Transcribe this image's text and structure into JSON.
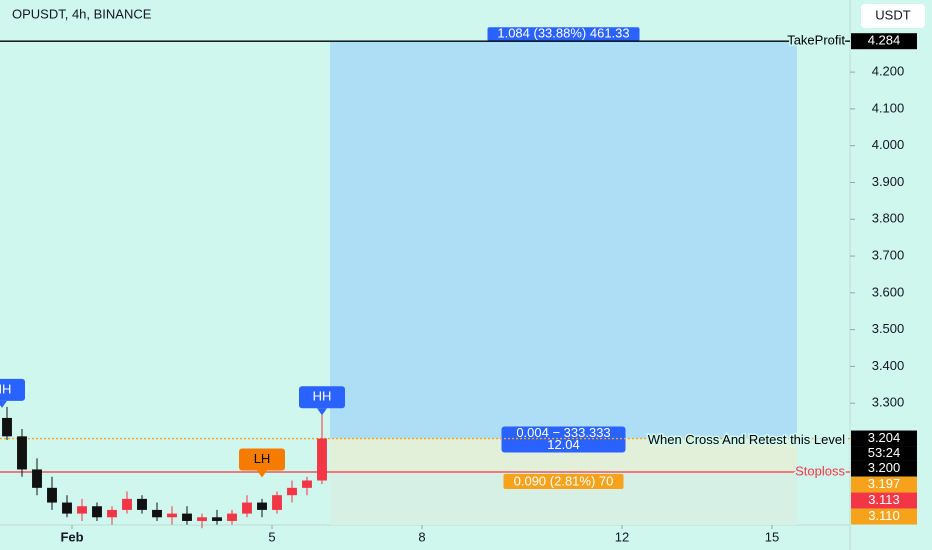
{
  "chart_data": {
    "type": "candlestick",
    "title": "OPUSDT, 4h, BINANCE",
    "currency": "USDT",
    "xlim": [
      -0.44,
      16.56
    ],
    "xticks": [
      {
        "value": 1,
        "label": "Feb"
      },
      5,
      8,
      12,
      15
    ],
    "ylim": [
      2.969,
      4.396
    ],
    "yticks": [
      {
        "value": 3.3,
        "label": "3.300"
      },
      {
        "value": 3.4,
        "label": "3.400"
      },
      {
        "value": 3.5,
        "label": "3.500"
      },
      {
        "value": 3.6,
        "label": "3.600"
      },
      {
        "value": 3.7,
        "label": "3.700"
      },
      {
        "value": 3.8,
        "label": "3.800"
      },
      {
        "value": 3.9,
        "label": "3.900"
      },
      {
        "value": 4.0,
        "label": "4.000"
      },
      {
        "value": 4.1,
        "label": "4.100"
      },
      {
        "value": 4.2,
        "label": "4.200"
      }
    ],
    "up_color": "#f23645",
    "down_color": "#111111",
    "x": [
      -0.3,
      0.0,
      0.3,
      0.6,
      0.9,
      1.2,
      1.5,
      1.8,
      2.1,
      2.4,
      2.7,
      3.0,
      3.3,
      3.6,
      3.9,
      4.2,
      4.5,
      4.8,
      5.1,
      5.4,
      5.7,
      6.0
    ],
    "open": [
      3.26,
      3.21,
      3.12,
      3.07,
      3.03,
      3.0,
      3.02,
      2.99,
      3.01,
      3.04,
      3.01,
      2.99,
      3.0,
      2.98,
      2.99,
      2.98,
      3.0,
      3.03,
      3.01,
      3.05,
      3.07,
      3.09
    ],
    "high": [
      3.29,
      3.23,
      3.15,
      3.1,
      3.05,
      3.04,
      3.03,
      3.02,
      3.06,
      3.05,
      3.03,
      3.02,
      3.02,
      3.0,
      3.01,
      3.01,
      3.05,
      3.04,
      3.06,
      3.09,
      3.1,
      3.27
    ],
    "low": [
      3.2,
      3.1,
      3.05,
      3.01,
      2.99,
      2.98,
      2.98,
      2.97,
      3.0,
      3.0,
      2.98,
      2.97,
      2.97,
      2.96,
      2.97,
      2.97,
      2.99,
      2.99,
      3.0,
      3.03,
      3.05,
      3.08
    ],
    "close": [
      3.21,
      3.12,
      3.07,
      3.03,
      3.0,
      3.02,
      2.99,
      3.01,
      3.04,
      3.01,
      2.99,
      3.0,
      2.98,
      2.99,
      2.98,
      3.0,
      3.03,
      3.01,
      3.05,
      3.07,
      3.09,
      3.204
    ],
    "pivots": [
      {
        "label": "HH",
        "x": -0.4,
        "y": 3.29,
        "color": "#2962ff"
      },
      {
        "label": "LH",
        "x": 4.8,
        "y": 3.09,
        "color": "#f57c00"
      },
      {
        "label": "HH",
        "x": 6.0,
        "y": 3.27,
        "color": "#2962ff"
      }
    ],
    "position": {
      "start": 6.16,
      "end": 15.5,
      "entry": 3.204,
      "take_profit": 4.284,
      "stop": 3.113,
      "target_label": "1.084 (33.88%) 461.33",
      "entry_label": [
        "0.004 − 333.333",
        "12.04"
      ],
      "stop_label": "0.090 (2.81%) 70"
    },
    "lines": [
      {
        "label": "TakeProfit",
        "value": 4.284,
        "color": "#000000"
      },
      {
        "label": "When Cross And Retest this Level",
        "value": 3.204,
        "color": "#f5a623"
      },
      {
        "label": "Stoploss",
        "value": 3.113,
        "color": "#f23645"
      }
    ],
    "countdown": "53:24",
    "price_tags": [
      {
        "value": 4.284,
        "label": "4.284",
        "color": "#000000"
      },
      {
        "value": 3.204,
        "label": "3.204",
        "color": "#000000"
      },
      {
        "value": 3.2,
        "label": "3.200",
        "color": "#000000"
      },
      {
        "value": 3.197,
        "label": "3.197",
        "color": "#f7a21b"
      },
      {
        "value": 3.113,
        "label": "3.113",
        "color": "#f23645"
      },
      {
        "value": 3.11,
        "label": "3.110",
        "color": "#f7a21b"
      }
    ]
  }
}
